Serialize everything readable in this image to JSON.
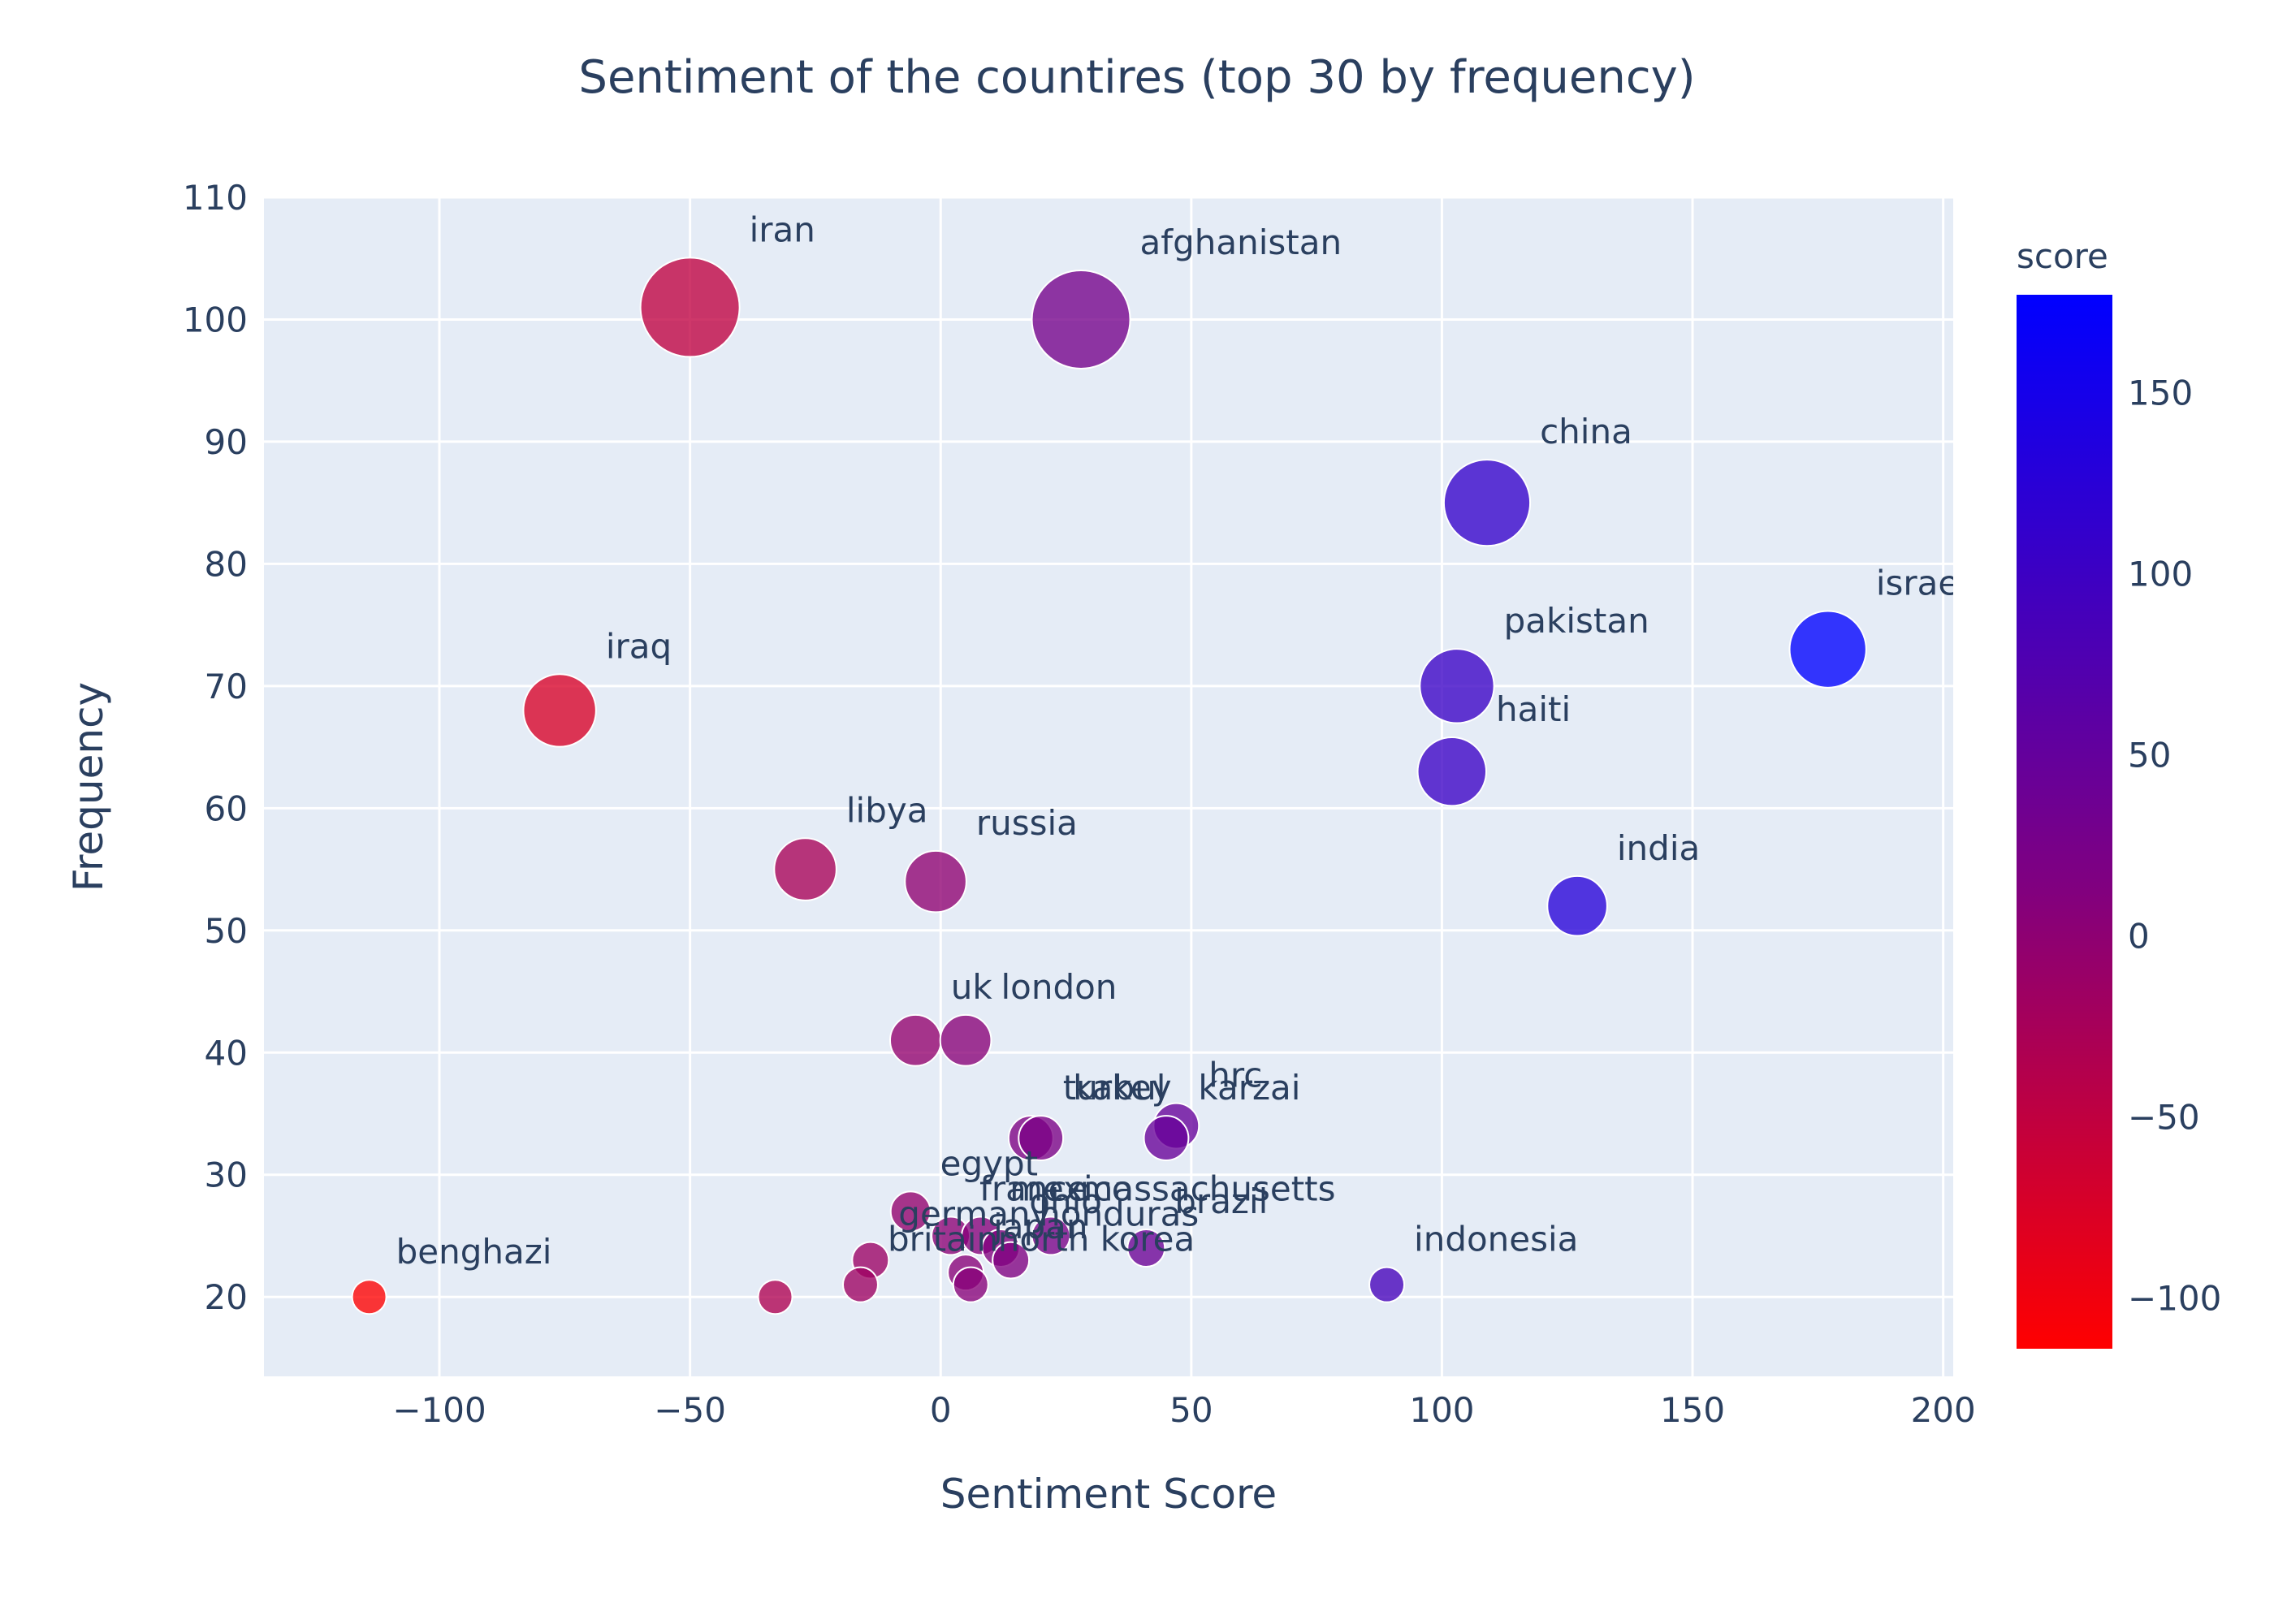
{
  "chart_data": {
    "type": "scatter",
    "title": "Sentiment of the countires (top 30 by frequency)",
    "xlabel": "Sentiment Score",
    "ylabel": "Frequency",
    "xlim": [
      -135,
      202
    ],
    "ylim": [
      13.5,
      110
    ],
    "xticks": [
      -100,
      -50,
      0,
      50,
      100,
      150,
      200
    ],
    "xtick_labels": [
      "−100",
      "−50",
      "0",
      "50",
      "100",
      "150",
      "200"
    ],
    "yticks": [
      20,
      30,
      40,
      50,
      60,
      70,
      80,
      90,
      100,
      110
    ],
    "ytick_labels": [
      "20",
      "30",
      "40",
      "50",
      "60",
      "70",
      "80",
      "90",
      "100",
      "110"
    ],
    "grid": true,
    "colorbar": {
      "title": "score",
      "range": [
        -114,
        177
      ],
      "ticks": [
        -100,
        -50,
        0,
        50,
        100,
        150
      ],
      "tick_labels": [
        "−100",
        "−50",
        "0",
        "50",
        "100",
        "150"
      ],
      "color_low": "#ff0000",
      "color_mid": "#800080",
      "color_high": "#0000ff"
    },
    "colors": {
      "plot_bg": "#e5ecf6",
      "grid": "#ffffff",
      "text": "#2a3f5f"
    },
    "points": [
      {
        "label": "iran",
        "x": -50,
        "y": 101
      },
      {
        "label": "afghanistan",
        "x": 28,
        "y": 100
      },
      {
        "label": "china",
        "x": 109,
        "y": 85
      },
      {
        "label": "israel",
        "x": 177,
        "y": 73
      },
      {
        "label": "pakistan",
        "x": 103,
        "y": 70
      },
      {
        "label": "iraq",
        "x": -76,
        "y": 68
      },
      {
        "label": "haiti",
        "x": 102,
        "y": 63
      },
      {
        "label": "libya",
        "x": -27,
        "y": 55
      },
      {
        "label": "russia",
        "x": -1,
        "y": 54
      },
      {
        "label": "india",
        "x": 127,
        "y": 52
      },
      {
        "label": "uk",
        "x": -5,
        "y": 41
      },
      {
        "label": "london",
        "x": 5,
        "y": 41
      },
      {
        "label": "hrc",
        "x": 47,
        "y": 34
      },
      {
        "label": "turkey",
        "x": 18,
        "y": 33
      },
      {
        "label": "kabul",
        "x": 20,
        "y": 33
      },
      {
        "label": "karzai",
        "x": 45,
        "y": 33
      },
      {
        "label": "egypt",
        "x": -6,
        "y": 27
      },
      {
        "label": "france",
        "x": 2,
        "y": 25
      },
      {
        "label": "mexico",
        "x": 8,
        "y": 25
      },
      {
        "label": "massachusetts",
        "x": 22,
        "y": 25
      },
      {
        "label": "brazil",
        "x": 41,
        "y": 24
      },
      {
        "label": "ohio",
        "x": 12,
        "y": 24
      },
      {
        "label": "honduras",
        "x": 14,
        "y": 23
      },
      {
        "label": "germany",
        "x": -14,
        "y": 23
      },
      {
        "label": "japan",
        "x": 5,
        "y": 22
      },
      {
        "label": "britain",
        "x": -16,
        "y": 21
      },
      {
        "label": "north korea",
        "x": 6,
        "y": 21
      },
      {
        "label": "indonesia",
        "x": 89,
        "y": 21
      },
      {
        "label": "benghazi",
        "x": -114,
        "y": 20
      },
      {
        "label": "",
        "x": -33,
        "y": 20
      }
    ]
  }
}
